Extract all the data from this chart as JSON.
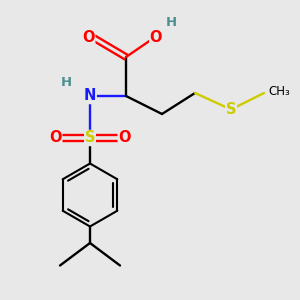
{
  "background_color": "#e8e8e8",
  "atom_colors": {
    "C": "#000000",
    "H": "#4a9090",
    "N": "#1a1aff",
    "O": "#ff0000",
    "S_sulfonyl": "#cccc00",
    "S_thioether": "#cccc00"
  },
  "figsize": [
    3.0,
    3.0
  ],
  "dpi": 100,
  "xlim": [
    0,
    10
  ],
  "ylim": [
    0,
    10
  ]
}
